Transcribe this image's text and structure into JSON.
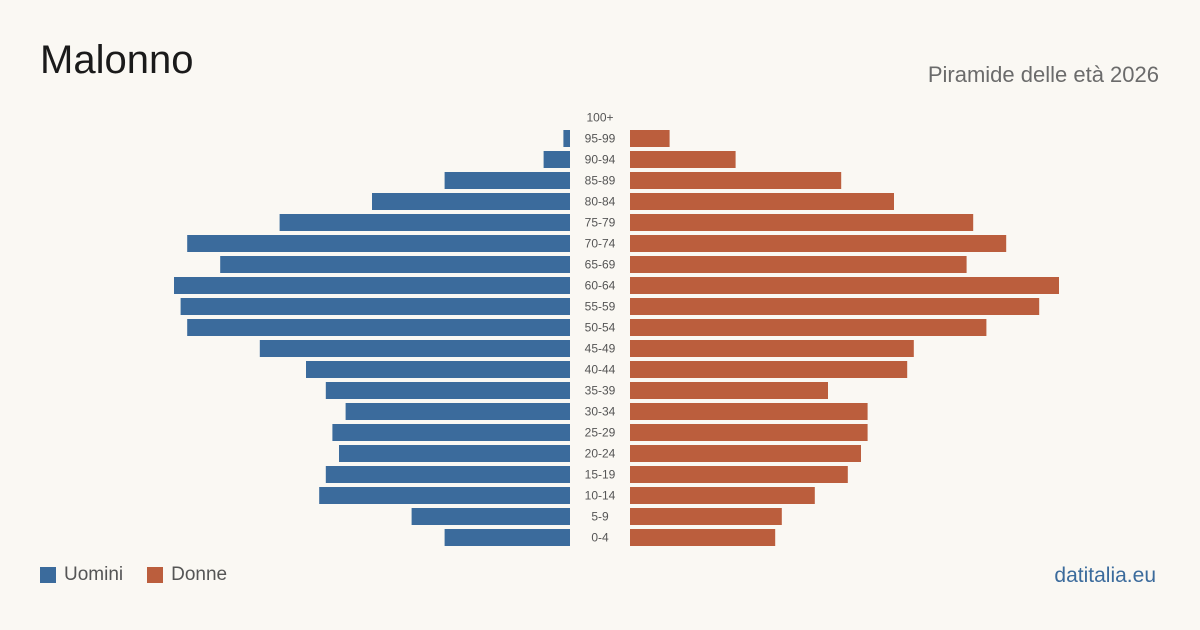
{
  "header": {
    "title": "Malonno",
    "subtitle": "Piramide delle età 2026"
  },
  "legend": {
    "men_label": "Uomini",
    "women_label": "Donne"
  },
  "footer": {
    "source": "datitalia.eu"
  },
  "colors": {
    "men": "#3b6b9c",
    "women": "#bb5e3d",
    "background": "#faf8f3"
  },
  "chart_data": {
    "type": "bar",
    "orientation": "horizontal-pyramid",
    "categories": [
      "100+",
      "95-99",
      "90-94",
      "85-89",
      "80-84",
      "75-79",
      "70-74",
      "65-69",
      "60-64",
      "55-59",
      "50-54",
      "45-49",
      "40-44",
      "35-39",
      "30-34",
      "25-29",
      "20-24",
      "15-19",
      "10-14",
      "5-9",
      "0-4"
    ],
    "series": [
      {
        "name": "Uomini",
        "values": [
          0,
          1,
          4,
          19,
          30,
          44,
          58,
          53,
          60,
          59,
          58,
          47,
          40,
          37,
          34,
          36,
          35,
          37,
          38,
          24,
          19
        ]
      },
      {
        "name": "Donne",
        "values": [
          0,
          6,
          16,
          32,
          40,
          52,
          57,
          51,
          65,
          62,
          54,
          43,
          42,
          30,
          36,
          36,
          35,
          33,
          28,
          23,
          22
        ]
      }
    ],
    "legend": "bottom-left",
    "grid": false
  }
}
